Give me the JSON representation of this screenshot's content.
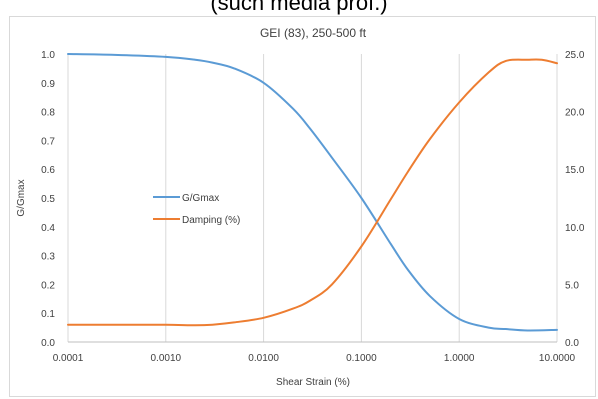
{
  "page": {
    "outer_title": "(such media prof.)"
  },
  "chart_data": {
    "type": "line",
    "title": "GEI (83), 250-500 ft",
    "xlabel": "Shear Strain (%)",
    "ylabel": "G/Gmax",
    "y2label": "",
    "xscale": "log",
    "xlim": [
      0.0001,
      10
    ],
    "ylim": [
      0,
      1.0
    ],
    "y2lim": [
      0,
      25
    ],
    "x_ticks": [
      "0.0001",
      "0.0010",
      "0.0100",
      "0.1000",
      "1.0000",
      "10.0000"
    ],
    "y_ticks": [
      "0.0",
      "0.1",
      "0.2",
      "0.3",
      "0.4",
      "0.5",
      "0.6",
      "0.7",
      "0.8",
      "0.9",
      "1.0"
    ],
    "y2_ticks": [
      "0.0",
      "5.0",
      "10.0",
      "15.0",
      "20.0",
      "25.0"
    ],
    "grid": "vertical",
    "legend": "center-left",
    "series": [
      {
        "name": "G/Gmax",
        "axis": "left",
        "color": "#5b9bd5",
        "x": [
          0.0001,
          0.0003,
          0.001,
          0.002,
          0.003,
          0.005,
          0.01,
          0.02,
          0.03,
          0.05,
          0.1,
          0.2,
          0.3,
          0.5,
          1,
          2,
          3,
          5,
          10
        ],
        "y": [
          1.0,
          0.997,
          0.99,
          0.98,
          0.97,
          0.95,
          0.9,
          0.81,
          0.74,
          0.64,
          0.5,
          0.34,
          0.25,
          0.16,
          0.08,
          0.05,
          0.045,
          0.04,
          0.042
        ]
      },
      {
        "name": "Damping (%)",
        "axis": "right",
        "color": "#ed7d31",
        "x": [
          0.0001,
          0.0003,
          0.001,
          0.002,
          0.003,
          0.005,
          0.01,
          0.02,
          0.03,
          0.05,
          0.1,
          0.2,
          0.3,
          0.5,
          1,
          2,
          3,
          5,
          7,
          10
        ],
        "y": [
          1.5,
          1.5,
          1.5,
          1.45,
          1.5,
          1.7,
          2.1,
          2.9,
          3.6,
          5.0,
          8.3,
          12.4,
          14.8,
          17.6,
          20.8,
          23.4,
          24.4,
          24.5,
          24.5,
          24.2
        ]
      }
    ]
  }
}
